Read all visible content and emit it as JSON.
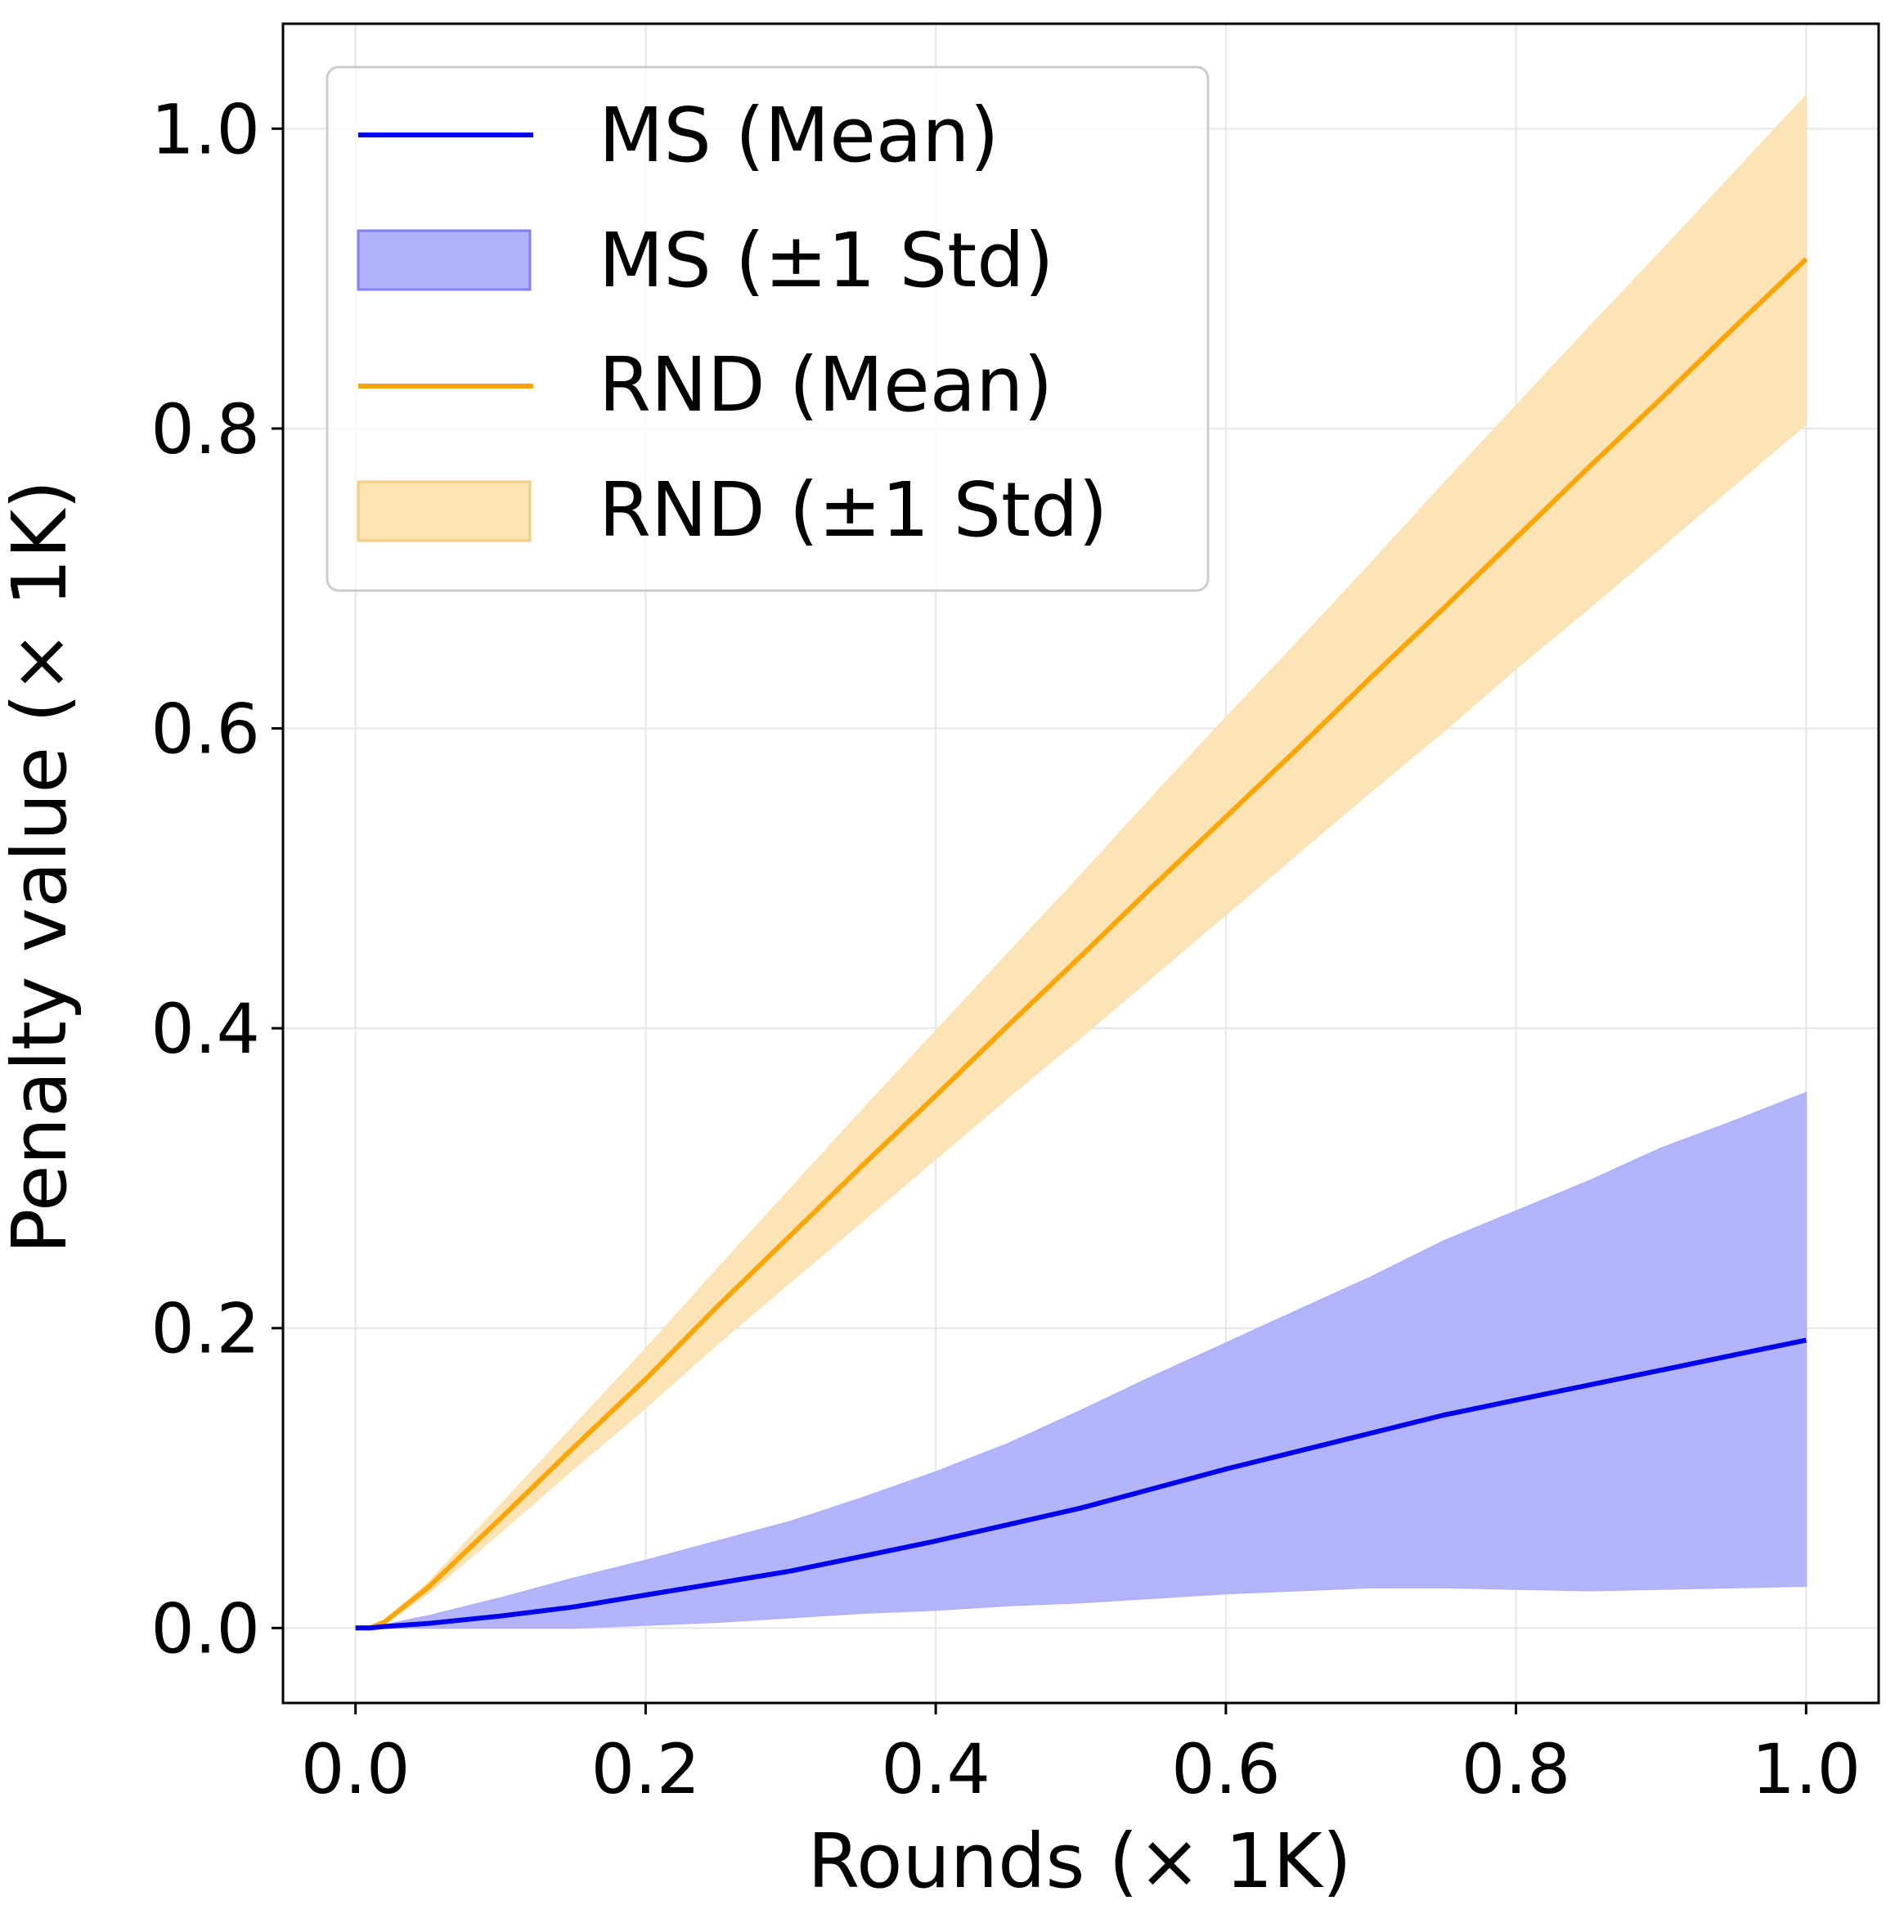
{
  "chart_data": {
    "type": "line",
    "title": "",
    "xlabel": "Rounds (× 1K)",
    "ylabel": "Penalty value (× 1K)",
    "xlim": [
      -0.05,
      1.05
    ],
    "ylim": [
      -0.05,
      1.07
    ],
    "xticks": [
      0.0,
      0.2,
      0.4,
      0.6,
      0.8,
      1.0
    ],
    "yticks": [
      0.0,
      0.2,
      0.4,
      0.6,
      0.8,
      1.0
    ],
    "xtick_labels": [
      "0.0",
      "0.2",
      "0.4",
      "0.6",
      "0.8",
      "1.0"
    ],
    "ytick_labels": [
      "0.0",
      "0.2",
      "0.4",
      "0.6",
      "0.8",
      "1.0"
    ],
    "grid": true,
    "legend_position": "top-left",
    "x": [
      0.0,
      0.01,
      0.02,
      0.05,
      0.1,
      0.15,
      0.2,
      0.25,
      0.3,
      0.35,
      0.4,
      0.45,
      0.5,
      0.55,
      0.6,
      0.65,
      0.7,
      0.75,
      0.8,
      0.85,
      0.9,
      0.95,
      1.0
    ],
    "series": [
      {
        "name": "MS (Mean)",
        "color": "#0000ee",
        "mean": [
          0.0,
          0.0,
          0.001,
          0.003,
          0.008,
          0.014,
          0.022,
          0.03,
          0.038,
          0.048,
          0.058,
          0.069,
          0.08,
          0.093,
          0.106,
          0.118,
          0.13,
          0.142,
          0.152,
          0.162,
          0.172,
          0.182,
          0.192
        ],
        "std_band_name": "MS (±1 Std)",
        "std_color": "#b0b0fb",
        "upper": [
          0.0,
          0.0,
          0.002,
          0.008,
          0.02,
          0.033,
          0.045,
          0.058,
          0.071,
          0.087,
          0.104,
          0.123,
          0.145,
          0.168,
          0.19,
          0.212,
          0.234,
          0.258,
          0.278,
          0.298,
          0.32,
          0.338,
          0.357
        ],
        "lower": [
          0.0,
          0.0,
          0.0,
          0.0,
          0.0,
          0.0,
          0.002,
          0.004,
          0.007,
          0.01,
          0.012,
          0.015,
          0.017,
          0.02,
          0.023,
          0.025,
          0.027,
          0.027,
          0.026,
          0.025,
          0.026,
          0.027,
          0.028
        ]
      },
      {
        "name": "RND (Mean)",
        "color": "#ffa500",
        "mean": [
          0.0,
          0.0,
          0.004,
          0.027,
          0.073,
          0.12,
          0.166,
          0.215,
          0.262,
          0.309,
          0.355,
          0.402,
          0.448,
          0.495,
          0.541,
          0.587,
          0.634,
          0.68,
          0.727,
          0.774,
          0.82,
          0.867,
          0.913
        ],
        "std_band_name": "RND (±1 Std)",
        "std_color": "#fce3b2",
        "upper": [
          0.0,
          0.0,
          0.005,
          0.03,
          0.082,
          0.134,
          0.186,
          0.24,
          0.293,
          0.346,
          0.398,
          0.45,
          0.502,
          0.555,
          0.607,
          0.658,
          0.71,
          0.763,
          0.815,
          0.867,
          0.918,
          0.97,
          1.022
        ],
        "lower": [
          0.0,
          0.0,
          0.003,
          0.023,
          0.064,
          0.106,
          0.147,
          0.19,
          0.231,
          0.272,
          0.313,
          0.354,
          0.394,
          0.435,
          0.476,
          0.517,
          0.558,
          0.598,
          0.64,
          0.68,
          0.721,
          0.762,
          0.803
        ]
      }
    ]
  }
}
